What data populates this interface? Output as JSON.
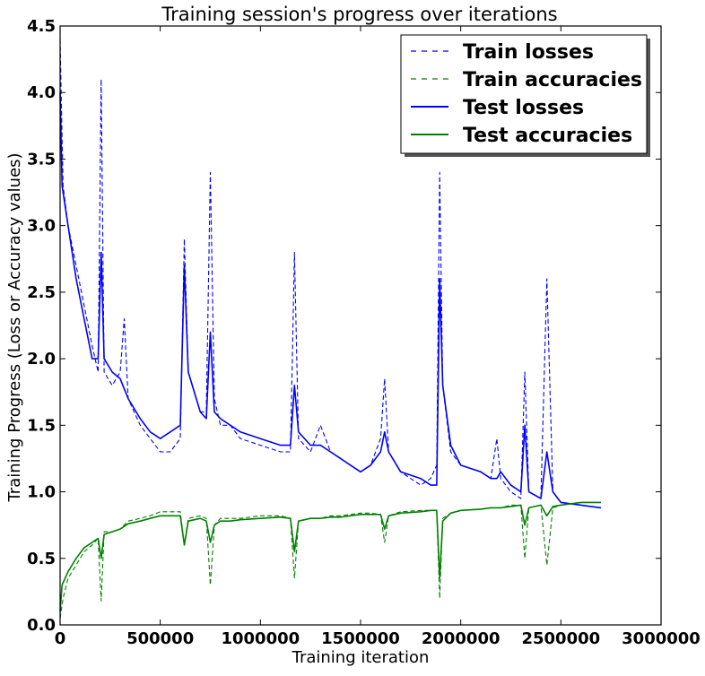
{
  "chart_data": {
    "type": "line",
    "title": "Training session's progress over iterations",
    "xlabel": "Training iteration",
    "ylabel": "Training Progress (Loss or Accuracy values)",
    "xlim": [
      0,
      3000000
    ],
    "ylim": [
      0.0,
      4.5
    ],
    "x_ticks": [
      0,
      500000,
      1000000,
      1500000,
      2000000,
      2500000,
      3000000
    ],
    "x_tick_labels": [
      "0",
      "500000",
      "1000000",
      "1500000",
      "2000000",
      "2500000",
      "3000000"
    ],
    "y_ticks": [
      0.0,
      0.5,
      1.0,
      1.5,
      2.0,
      2.5,
      3.0,
      3.5,
      4.0,
      4.5
    ],
    "y_tick_labels": [
      "0.0",
      "0.5",
      "1.0",
      "1.5",
      "2.0",
      "2.5",
      "3.0",
      "3.5",
      "4.0",
      "4.5"
    ],
    "grid": false,
    "legend_position": "top-right",
    "series": [
      {
        "name": "Train losses",
        "color": "#0000ff",
        "style": "dashed",
        "x": [
          0,
          15000,
          40000,
          80000,
          120000,
          160000,
          190000,
          205000,
          220000,
          260000,
          300000,
          320000,
          340000,
          400000,
          450000,
          500000,
          550000,
          600000,
          620000,
          640000,
          700000,
          730000,
          750000,
          770000,
          800000,
          850000,
          900000,
          1000000,
          1100000,
          1150000,
          1170000,
          1190000,
          1250000,
          1300000,
          1350000,
          1400000,
          1450000,
          1500000,
          1550000,
          1600000,
          1620000,
          1640000,
          1700000,
          1800000,
          1850000,
          1880000,
          1895000,
          1910000,
          1950000,
          2000000,
          2100000,
          2150000,
          2180000,
          2200000,
          2250000,
          2300000,
          2320000,
          2340000,
          2400000,
          2430000,
          2460000,
          2500000,
          2600000,
          2700000
        ],
        "y": [
          4.4,
          3.3,
          3.0,
          2.7,
          2.4,
          2.1,
          1.9,
          4.1,
          1.9,
          1.8,
          1.9,
          2.3,
          1.7,
          1.5,
          1.4,
          1.3,
          1.3,
          1.4,
          2.9,
          1.9,
          1.6,
          1.6,
          3.4,
          1.7,
          1.5,
          1.5,
          1.4,
          1.35,
          1.3,
          1.3,
          2.8,
          1.4,
          1.3,
          1.5,
          1.3,
          1.25,
          1.2,
          1.15,
          1.2,
          1.4,
          1.85,
          1.3,
          1.15,
          1.05,
          1.1,
          1.2,
          3.4,
          1.8,
          1.3,
          1.2,
          1.15,
          1.1,
          1.4,
          1.1,
          1.0,
          0.95,
          1.9,
          1.0,
          0.95,
          2.6,
          1.0,
          0.92,
          0.9,
          0.88
        ]
      },
      {
        "name": "Train accuracies",
        "color": "#008000",
        "style": "dashed",
        "x": [
          0,
          15000,
          40000,
          80000,
          120000,
          160000,
          190000,
          205000,
          220000,
          260000,
          300000,
          340000,
          400000,
          450000,
          500000,
          550000,
          600000,
          620000,
          640000,
          700000,
          730000,
          750000,
          770000,
          800000,
          850000,
          900000,
          1000000,
          1100000,
          1150000,
          1170000,
          1190000,
          1250000,
          1300000,
          1350000,
          1400000,
          1450000,
          1500000,
          1550000,
          1600000,
          1620000,
          1640000,
          1700000,
          1800000,
          1850000,
          1880000,
          1895000,
          1910000,
          1950000,
          2000000,
          2100000,
          2150000,
          2200000,
          2250000,
          2300000,
          2320000,
          2340000,
          2400000,
          2430000,
          2460000,
          2500000,
          2600000,
          2700000
        ],
        "y": [
          0.05,
          0.2,
          0.35,
          0.45,
          0.55,
          0.6,
          0.65,
          0.18,
          0.7,
          0.7,
          0.72,
          0.78,
          0.8,
          0.82,
          0.85,
          0.85,
          0.85,
          0.6,
          0.8,
          0.82,
          0.8,
          0.3,
          0.75,
          0.8,
          0.8,
          0.8,
          0.82,
          0.82,
          0.8,
          0.35,
          0.78,
          0.8,
          0.8,
          0.82,
          0.82,
          0.83,
          0.84,
          0.84,
          0.83,
          0.62,
          0.82,
          0.85,
          0.86,
          0.86,
          0.86,
          0.2,
          0.8,
          0.84,
          0.86,
          0.87,
          0.88,
          0.88,
          0.9,
          0.9,
          0.5,
          0.88,
          0.9,
          0.45,
          0.88,
          0.9,
          0.92,
          0.92
        ]
      },
      {
        "name": "Test losses",
        "color": "#0000ff",
        "style": "solid",
        "x": [
          0,
          10000,
          40000,
          80000,
          120000,
          160000,
          190000,
          205000,
          220000,
          260000,
          300000,
          340000,
          400000,
          450000,
          500000,
          550000,
          600000,
          620000,
          640000,
          700000,
          730000,
          750000,
          770000,
          800000,
          850000,
          900000,
          1000000,
          1100000,
          1150000,
          1170000,
          1190000,
          1250000,
          1300000,
          1350000,
          1400000,
          1450000,
          1500000,
          1550000,
          1600000,
          1620000,
          1640000,
          1700000,
          1800000,
          1850000,
          1880000,
          1895000,
          1910000,
          1950000,
          2000000,
          2100000,
          2150000,
          2180000,
          2200000,
          2250000,
          2300000,
          2320000,
          2340000,
          2400000,
          2430000,
          2460000,
          2500000,
          2600000,
          2700000
        ],
        "y": [
          4.0,
          3.3,
          3.0,
          2.6,
          2.3,
          2.0,
          2.0,
          2.8,
          2.0,
          1.9,
          1.85,
          1.7,
          1.55,
          1.45,
          1.4,
          1.45,
          1.5,
          2.7,
          1.9,
          1.6,
          1.55,
          2.2,
          1.6,
          1.55,
          1.5,
          1.45,
          1.4,
          1.35,
          1.35,
          1.8,
          1.45,
          1.35,
          1.35,
          1.3,
          1.25,
          1.2,
          1.15,
          1.2,
          1.3,
          1.45,
          1.3,
          1.15,
          1.1,
          1.05,
          1.05,
          2.6,
          1.8,
          1.35,
          1.2,
          1.15,
          1.1,
          1.1,
          1.15,
          1.05,
          1.0,
          1.5,
          1.0,
          0.95,
          1.3,
          1.0,
          0.92,
          0.9,
          0.88
        ]
      },
      {
        "name": "Test accuracies",
        "color": "#008000",
        "style": "solid",
        "x": [
          0,
          10000,
          40000,
          80000,
          120000,
          160000,
          190000,
          205000,
          220000,
          260000,
          300000,
          340000,
          400000,
          450000,
          500000,
          550000,
          600000,
          620000,
          640000,
          700000,
          730000,
          750000,
          770000,
          800000,
          850000,
          900000,
          1000000,
          1100000,
          1150000,
          1170000,
          1190000,
          1250000,
          1300000,
          1350000,
          1400000,
          1450000,
          1500000,
          1550000,
          1600000,
          1620000,
          1640000,
          1700000,
          1800000,
          1850000,
          1880000,
          1895000,
          1910000,
          1950000,
          2000000,
          2100000,
          2150000,
          2200000,
          2250000,
          2300000,
          2320000,
          2340000,
          2400000,
          2430000,
          2460000,
          2500000,
          2600000,
          2700000
        ],
        "y": [
          0.1,
          0.3,
          0.4,
          0.5,
          0.58,
          0.62,
          0.65,
          0.5,
          0.68,
          0.7,
          0.72,
          0.76,
          0.78,
          0.8,
          0.82,
          0.82,
          0.82,
          0.6,
          0.78,
          0.8,
          0.78,
          0.62,
          0.75,
          0.78,
          0.78,
          0.79,
          0.8,
          0.81,
          0.8,
          0.55,
          0.78,
          0.8,
          0.8,
          0.81,
          0.81,
          0.82,
          0.83,
          0.83,
          0.83,
          0.72,
          0.82,
          0.84,
          0.85,
          0.86,
          0.86,
          0.35,
          0.78,
          0.84,
          0.86,
          0.87,
          0.88,
          0.88,
          0.89,
          0.9,
          0.75,
          0.88,
          0.9,
          0.82,
          0.89,
          0.9,
          0.92,
          0.92
        ]
      }
    ]
  }
}
